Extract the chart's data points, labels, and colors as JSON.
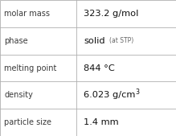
{
  "rows": [
    {
      "label": "molar mass",
      "value_text": "323.2 g/mol",
      "special": null
    },
    {
      "label": "phase",
      "value_text": "solid",
      "special": "phase"
    },
    {
      "label": "melting point",
      "value_text": "844 °C",
      "special": null
    },
    {
      "label": "density",
      "value_text": "6.023 g/cm",
      "special": "density"
    },
    {
      "label": "particle size",
      "value_text": "1.4 mm",
      "special": null
    }
  ],
  "bg_color": "#ffffff",
  "border_color": "#b0b0b0",
  "label_color": "#3a3a3a",
  "value_color": "#111111",
  "stp_color": "#666666",
  "label_fontsize": 7.0,
  "value_fontsize": 8.2,
  "stp_fontsize": 5.5,
  "super_fontsize": 5.8,
  "col_split": 0.435,
  "fig_width": 2.19,
  "fig_height": 1.69,
  "dpi": 100
}
